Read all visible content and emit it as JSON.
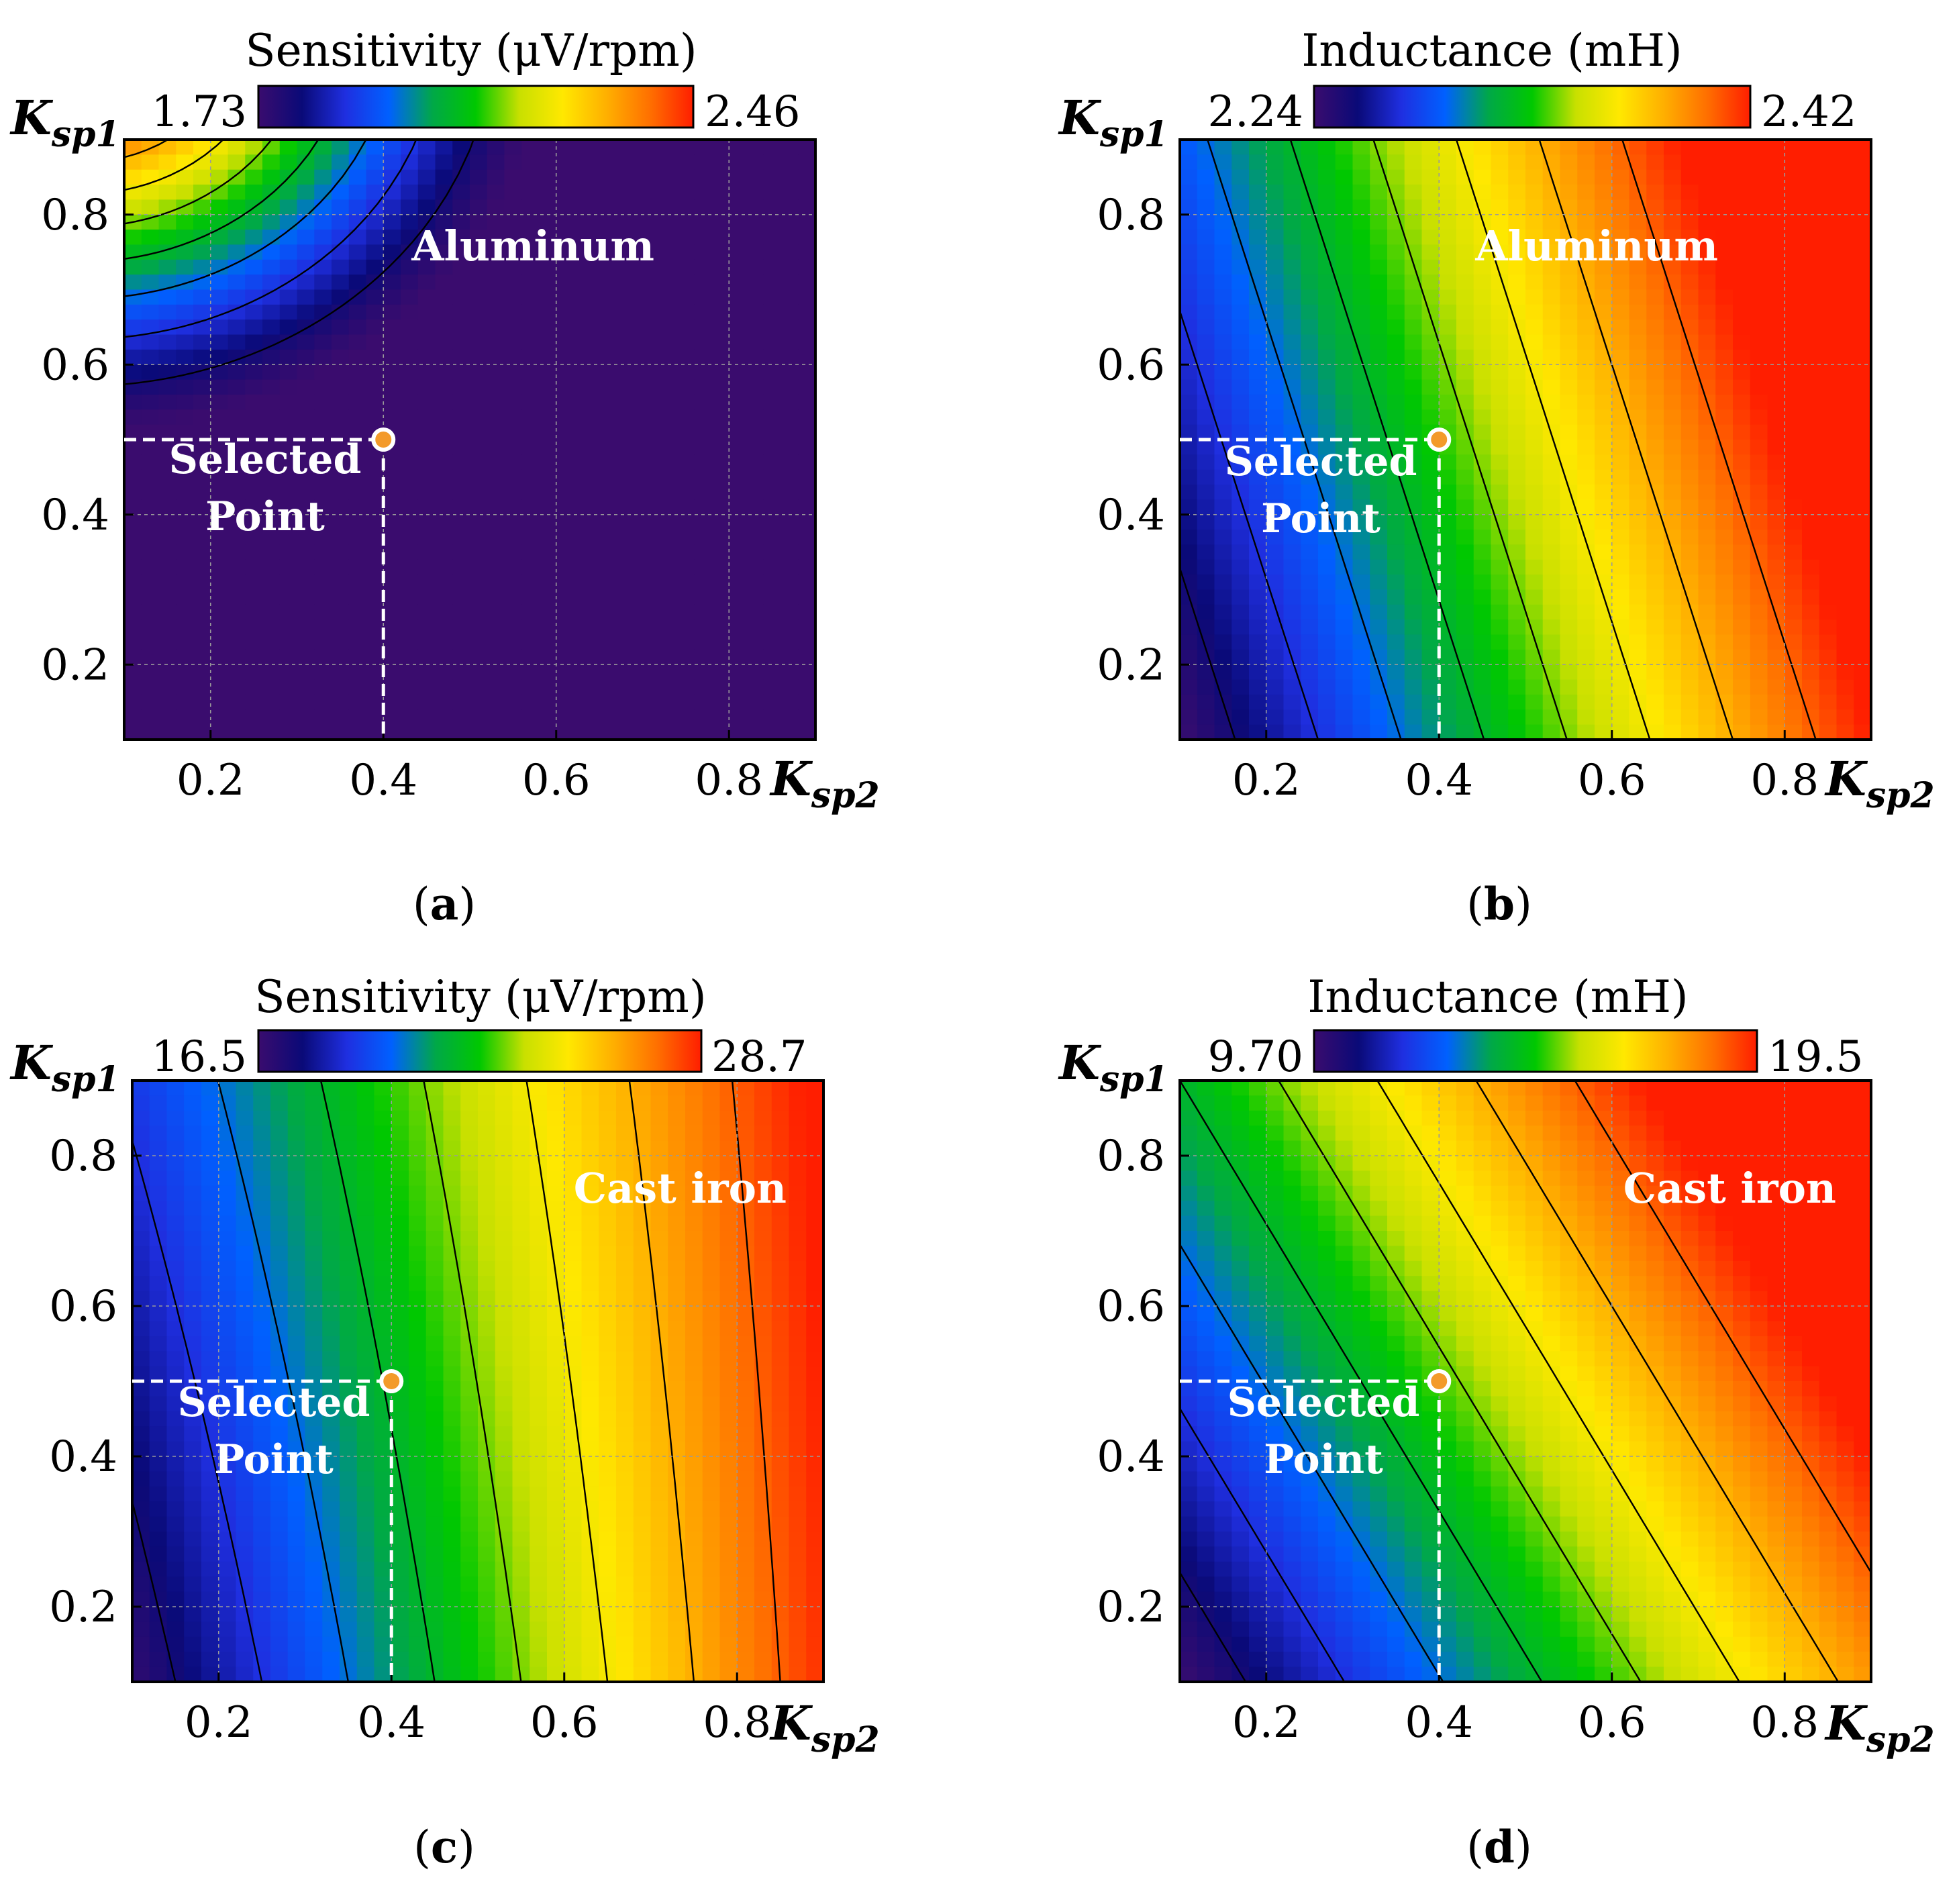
{
  "chart_data": [
    {
      "type": "heatmap",
      "panel": "a",
      "caption_letter": "a",
      "title": "Sensitivity (μV/rpm)",
      "material": "Aluminum",
      "colorbar": {
        "min_label": "1.73",
        "max_label": "2.46",
        "min": 1.73,
        "max": 2.46
      },
      "xlabel": {
        "main": "K",
        "sub": "sp2"
      },
      "ylabel": {
        "main": "K",
        "sub": "sp1"
      },
      "xlim": [
        0.1,
        0.9
      ],
      "ylim": [
        0.1,
        0.9
      ],
      "xticks": [
        "0.2",
        "0.4",
        "0.6",
        "0.8"
      ],
      "yticks": [
        "0.2",
        "0.4",
        "0.6",
        "0.8"
      ],
      "xtick_values": [
        0.2,
        0.4,
        0.6,
        0.8
      ],
      "ytick_values": [
        0.2,
        0.4,
        0.6,
        0.8
      ],
      "field": "radial",
      "selected_point": {
        "x": 0.4,
        "y": 0.5,
        "label_line1": "Selected",
        "label_line2": "Point"
      }
    },
    {
      "type": "heatmap",
      "panel": "b",
      "caption_letter": "b",
      "title": "Inductance (mH)",
      "material": "Aluminum",
      "colorbar": {
        "min_label": "2.24",
        "max_label": "2.42",
        "min": 2.24,
        "max": 2.42
      },
      "xlabel": {
        "main": "K",
        "sub": "sp2"
      },
      "ylabel": {
        "main": "K",
        "sub": "sp1"
      },
      "xlim": [
        0.1,
        0.9
      ],
      "ylim": [
        0.1,
        0.9
      ],
      "xticks": [
        "0.2",
        "0.4",
        "0.6",
        "0.8"
      ],
      "yticks": [
        "0.2",
        "0.4",
        "0.6",
        "0.8"
      ],
      "xtick_values": [
        0.2,
        0.4,
        0.6,
        0.8
      ],
      "ytick_values": [
        0.2,
        0.4,
        0.6,
        0.8
      ],
      "field": "diag_b",
      "selected_point": {
        "x": 0.4,
        "y": 0.5,
        "label_line1": "Selected",
        "label_line2": "Point"
      }
    },
    {
      "type": "heatmap",
      "panel": "c",
      "caption_letter": "c",
      "title": "Sensitivity (μV/rpm)",
      "material": "Cast iron",
      "colorbar": {
        "min_label": "16.5",
        "max_label": "28.7",
        "min": 16.5,
        "max": 28.7
      },
      "xlabel": {
        "main": "K",
        "sub": "sp2"
      },
      "ylabel": {
        "main": "K",
        "sub": "sp1"
      },
      "xlim": [
        0.1,
        0.9
      ],
      "ylim": [
        0.1,
        0.9
      ],
      "xticks": [
        "0.2",
        "0.4",
        "0.6",
        "0.8"
      ],
      "yticks": [
        "0.2",
        "0.4",
        "0.6",
        "0.8"
      ],
      "xtick_values": [
        0.2,
        0.4,
        0.6,
        0.8
      ],
      "ytick_values": [
        0.2,
        0.4,
        0.6,
        0.8
      ],
      "field": "curved_c",
      "selected_point": {
        "x": 0.4,
        "y": 0.5,
        "label_line1": "Selected",
        "label_line2": "Point"
      }
    },
    {
      "type": "heatmap",
      "panel": "d",
      "caption_letter": "d",
      "title": "Inductance (mH)",
      "material": "Cast iron",
      "colorbar": {
        "min_label": "9.70",
        "max_label": "19.5",
        "min": 9.7,
        "max": 19.5
      },
      "xlabel": {
        "main": "K",
        "sub": "sp2"
      },
      "ylabel": {
        "main": "K",
        "sub": "sp1"
      },
      "xlim": [
        0.1,
        0.9
      ],
      "ylim": [
        0.1,
        0.9
      ],
      "xticks": [
        "0.2",
        "0.4",
        "0.6",
        "0.8"
      ],
      "yticks": [
        "0.2",
        "0.4",
        "0.6",
        "0.8"
      ],
      "xtick_values": [
        0.2,
        0.4,
        0.6,
        0.8
      ],
      "ytick_values": [
        0.2,
        0.4,
        0.6,
        0.8
      ],
      "field": "diag_d",
      "selected_point": {
        "x": 0.4,
        "y": 0.5,
        "label_line1": "Selected",
        "label_line2": "Point"
      }
    }
  ],
  "colors": {
    "point_fill": "#f39a2a",
    "point_stroke": "#ffffff",
    "grid": "#9a9a9a",
    "contour": "#000000",
    "colormap": [
      "#3a0c6e",
      "#0a0a78",
      "#1f2fe0",
      "#0060ff",
      "#00a848",
      "#00c800",
      "#c8e000",
      "#ffe800",
      "#ffb000",
      "#ff7000",
      "#ff1e00"
    ]
  }
}
